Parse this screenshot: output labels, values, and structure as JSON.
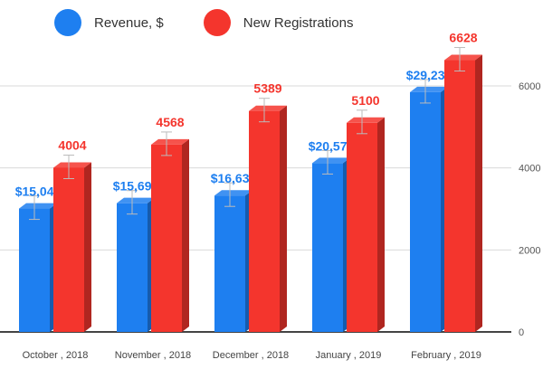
{
  "colors": {
    "revenue": "#1e7ff0",
    "registrations": "#f4352d",
    "grid": "#d9d9d9",
    "axis": "#444444"
  },
  "chart_data": {
    "type": "bar",
    "categories": [
      "October , 2018",
      "November , 2018",
      "December , 2018",
      "January , 2019",
      "February , 2019"
    ],
    "series": [
      {
        "name": "Revenue, $",
        "values": [
          15047,
          15697,
          16630,
          20578,
          29235
        ],
        "labels": [
          "$15,047",
          "$15,697",
          "$16,630",
          "$20,578",
          "$29,235"
        ]
      },
      {
        "name": "New Registrations",
        "values": [
          4004,
          4568,
          5389,
          5100,
          6628
        ],
        "labels": [
          "4004",
          "4568",
          "5389",
          "5100",
          "6628"
        ]
      }
    ],
    "y_ticks": [
      "0",
      "2000",
      "4000",
      "6000"
    ],
    "ylim": [
      0,
      7000
    ],
    "style": "3d-bars-with-error-bars",
    "grid": true,
    "legend": "top"
  }
}
